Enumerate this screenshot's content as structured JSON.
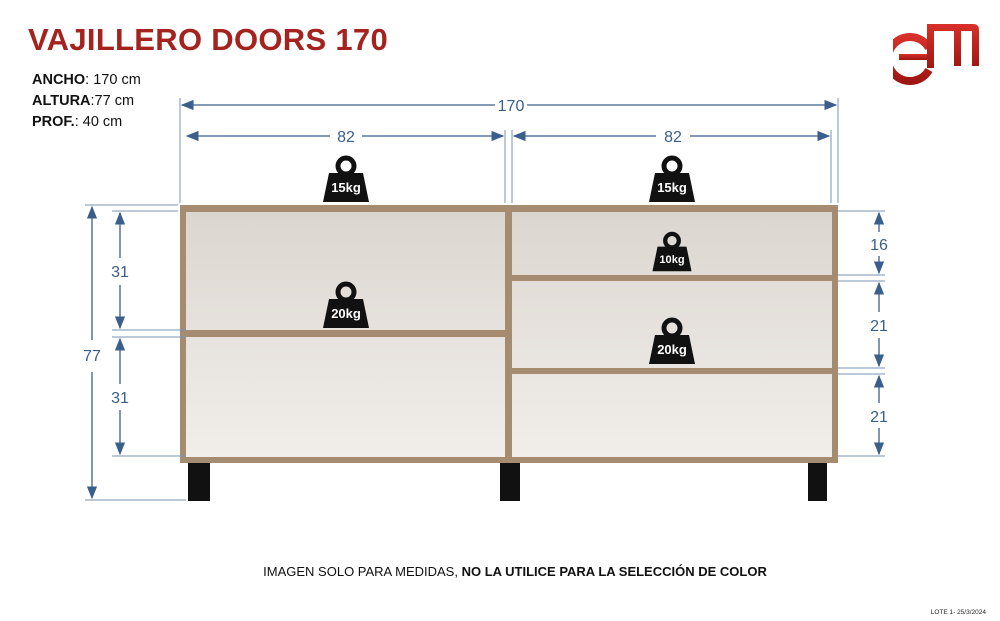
{
  "title": "VAJILLERO DOORS 170",
  "specs": [
    {
      "label": "ANCHO",
      "value": ": 170 cm"
    },
    {
      "label": "ALTURA",
      "value": ":77 cm"
    },
    {
      "label": "PROF.",
      "value": ": 40 cm"
    }
  ],
  "logo": {
    "text": "EM",
    "color": "#c0221c"
  },
  "dimensions": {
    "total_width": "170",
    "left_width": "82",
    "right_width": "82",
    "total_height": "77",
    "left_top": "31",
    "left_bottom": "31",
    "right_top": "16",
    "right_middle": "21",
    "right_bottom": "21"
  },
  "weights": {
    "top_left": "15kg",
    "top_right": "15kg",
    "left_shelf": "20kg",
    "right_top_shelf": "10kg",
    "right_mid_shelf": "20kg"
  },
  "footer": {
    "normal": "IMAGEN SOLO PARA MEDIDAS, ",
    "bold": "NO LA UTILICE PARA LA SELECCIÓN DE COLOR"
  },
  "lote": "LOTE 1- 25/3/2024",
  "colors": {
    "title": "#a4231f",
    "dimension": "#3a5f8c",
    "wood": "#a58b70",
    "interior": "#e9e5e0"
  }
}
